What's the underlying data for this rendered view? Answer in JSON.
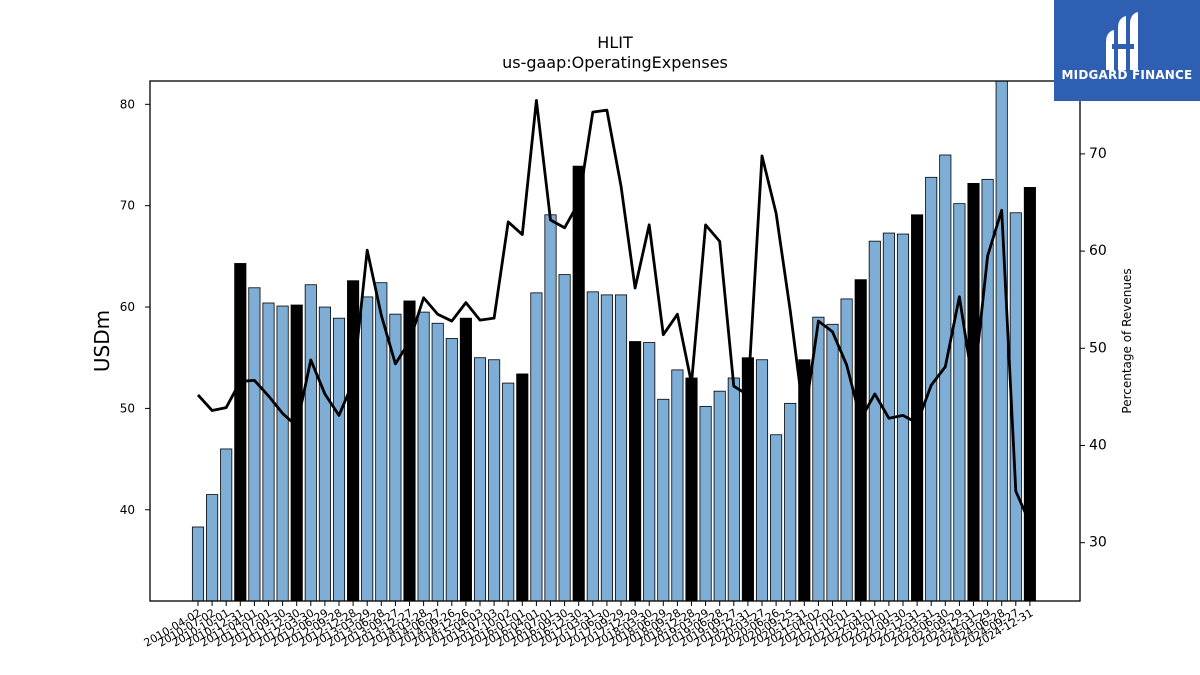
{
  "chart_data": {
    "type": "bar",
    "title": "HLIT",
    "subtitle": "us-gaap:OperatingExpenses",
    "ylabel_left": "USDm",
    "ylabel_right": "Percentage of Revenues",
    "ylim_left": [
      31,
      82.3
    ],
    "ylim_right": [
      24,
      77.5
    ],
    "yticks_left": [
      40,
      50,
      60,
      70,
      80
    ],
    "yticks_right": [
      30,
      40,
      50,
      60,
      70
    ],
    "colors": {
      "bar": "#7eaed6",
      "bar_highlight": "#000000",
      "line": "#000000"
    },
    "x": [
      "2010-04-02",
      "2010-07-02",
      "2010-10-01",
      "2010-12-31",
      "2011-04-01",
      "2011-07-01",
      "2011-09-30",
      "2011-12-30",
      "2012-03-30",
      "2012-06-29",
      "2012-09-28",
      "2012-12-28",
      "2013-03-29",
      "2013-06-28",
      "2013-09-27",
      "2013-12-27",
      "2014-03-28",
      "2014-06-27",
      "2014-09-26",
      "2014-12-26",
      "2015-04-03",
      "2015-07-03",
      "2015-10-02",
      "2016-01-01",
      "2016-04-01",
      "2016-07-01",
      "2016-09-30",
      "2016-12-30",
      "2017-03-31",
      "2017-06-30",
      "2017-09-29",
      "2017-12-29",
      "2018-03-30",
      "2018-06-29",
      "2018-09-28",
      "2018-12-28",
      "2019-03-29",
      "2019-06-28",
      "2019-09-27",
      "2019-12-31",
      "2020-03-27",
      "2020-06-26",
      "2020-09-25",
      "2020-12-31",
      "2021-04-02",
      "2021-07-02",
      "2021-10-01",
      "2021-12-31",
      "2022-04-01",
      "2022-07-01",
      "2022-09-30",
      "2022-12-31",
      "2023-03-31",
      "2023-06-30",
      "2023-09-29",
      "2023-12-31",
      "2024-03-29",
      "2024-06-28",
      "2024-09-27",
      "2024-12-31"
    ],
    "xtick_labels": [
      "2010-04-02",
      "2010-07-02",
      "2010-10-01",
      "2010-12-31",
      "2011-04-01",
      "2011-07-01",
      "2011-09-30",
      "2011-12-30",
      "2012-03-30",
      "2012-06-29",
      "2012-09-28",
      "2012-12-28",
      "2013-03-29",
      "2013-06-28",
      "2013-09-27",
      "2013-12-27",
      "2014-03-28",
      "2014-06-27",
      "2014-09-26",
      "2014-12-26",
      "2015-04-03",
      "2015-07-03",
      "2015-10-02",
      "2016-01-01",
      "2016-04-01",
      "2016-07-01",
      "2016-09-30",
      "2016-12-30",
      "2017-03-31",
      "2017-06-30",
      "2017-09-29",
      "2017-12-29",
      "2018-03-30",
      "2018-06-29",
      "2018-09-28",
      "2018-12-28",
      "2019-03-29",
      "2019-06-28",
      "2019-09-27",
      "2019-12-31",
      "2020-03-27",
      "2020-06-26",
      "2020-09-25",
      "2020-12-31",
      "2021-04-02",
      "2021-07-02",
      "2021-10-01",
      "2021-12-31",
      "2022-04-01",
      "2022-07-01",
      "2022-09-30",
      "2022-12-31",
      "2023-03-31",
      "2023-06-30",
      "2023-09-29",
      "2023-12-31",
      "2024-03-29",
      "2024-06-28",
      "2024-09-27",
      "2024-12-31"
    ],
    "series": [
      {
        "type": "bar",
        "axis": "left",
        "values": [
          38.3,
          41.5,
          46.0,
          64.3,
          61.9,
          60.4,
          60.1,
          60.2,
          62.2,
          60.0,
          58.9,
          62.6,
          61.0,
          62.4,
          59.3,
          60.6,
          59.5,
          58.4,
          56.9,
          58.9,
          55.0,
          54.8,
          52.5,
          53.4,
          61.4,
          69.1,
          63.2,
          73.9,
          61.5,
          61.2,
          61.2,
          56.6,
          56.5,
          50.9,
          53.8,
          53.0,
          50.2,
          51.7,
          53.0,
          55.0,
          54.8,
          47.4,
          50.5,
          54.8,
          59.0,
          58.3,
          60.8,
          62.7,
          66.5,
          67.3,
          67.2,
          69.1,
          72.8,
          75.0,
          70.2,
          72.2,
          72.6,
          82.4,
          69.3,
          71.8
        ],
        "highlight": [
          false,
          false,
          false,
          true,
          false,
          false,
          false,
          true,
          false,
          false,
          false,
          true,
          false,
          false,
          false,
          true,
          false,
          false,
          false,
          true,
          false,
          false,
          false,
          true,
          false,
          false,
          false,
          true,
          false,
          false,
          false,
          true,
          false,
          false,
          false,
          true,
          false,
          false,
          false,
          true,
          false,
          false,
          false,
          true,
          false,
          false,
          false,
          true,
          false,
          false,
          false,
          true,
          false,
          false,
          false,
          true,
          false,
          false,
          false,
          true
        ]
      },
      {
        "type": "line",
        "axis": "right",
        "values": [
          45.2,
          43.6,
          43.9,
          46.6,
          46.7,
          45.1,
          43.3,
          42.0,
          48.8,
          45.3,
          43.1,
          46.5,
          60.1,
          53.4,
          48.4,
          50.7,
          55.2,
          53.5,
          52.8,
          54.7,
          52.9,
          53.1,
          63.0,
          61.7,
          75.5,
          63.2,
          62.4,
          65.0,
          74.3,
          74.5,
          66.7,
          56.2,
          62.7,
          51.4,
          53.5,
          46.4,
          62.7,
          61.0,
          46.1,
          45.2,
          69.8,
          63.9,
          53.9,
          42.6,
          52.8,
          51.7,
          48.3,
          42.7,
          45.3,
          42.8,
          43.1,
          42.3,
          46.2,
          48.1,
          55.3,
          45.9,
          59.5,
          64.2,
          35.3,
          32.0
        ]
      }
    ]
  },
  "logo": {
    "text": "MIDGARD FINANCE"
  }
}
